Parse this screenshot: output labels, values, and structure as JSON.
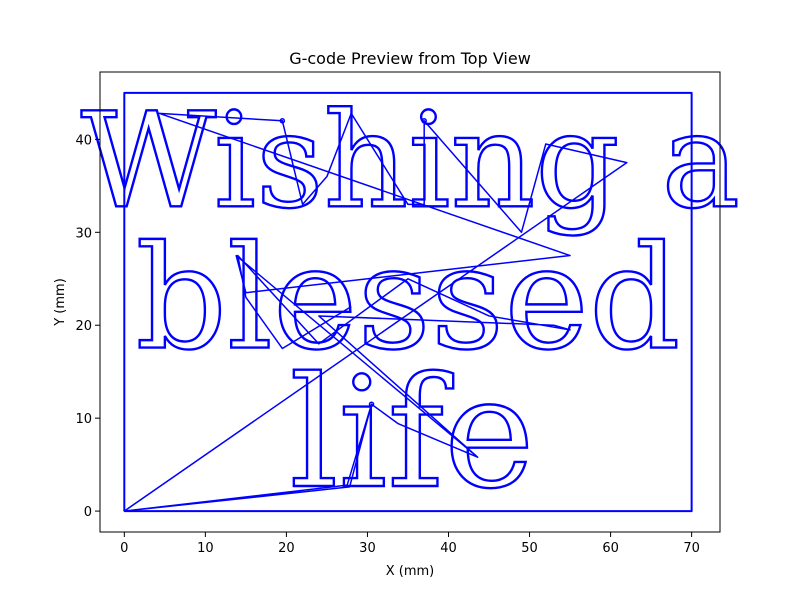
{
  "chart_data": {
    "type": "line",
    "title": "G-code Preview from Top View",
    "xlabel": "X (mm)",
    "ylabel": "Y (mm)",
    "xlim": [
      -3,
      73.5
    ],
    "ylim": [
      -2.25,
      47.25
    ],
    "xticks": [
      0,
      10,
      20,
      30,
      40,
      50,
      60,
      70
    ],
    "yticks": [
      0,
      10,
      20,
      30,
      40
    ],
    "grid": false,
    "line_color": "#0000ff",
    "series": [
      {
        "kind": "border",
        "points": [
          [
            0,
            0
          ],
          [
            0,
            45
          ],
          [
            70,
            45
          ],
          [
            70,
            0
          ],
          [
            0,
            0
          ]
        ]
      },
      {
        "kind": "travel",
        "points": [
          [
            0,
            0
          ],
          [
            27.5,
            2.8
          ],
          [
            30.5,
            11.5
          ],
          [
            27.8,
            2.6
          ],
          [
            0,
            0
          ],
          [
            62,
            37.5
          ],
          [
            52,
            39.5
          ],
          [
            49,
            30
          ],
          [
            37,
            42
          ],
          [
            37,
            33
          ],
          [
            35,
            33
          ],
          [
            28,
            42.8
          ],
          [
            25,
            36
          ],
          [
            22,
            33
          ],
          [
            19.5,
            42
          ],
          [
            4.3,
            42.8
          ],
          [
            55,
            27.5
          ],
          [
            15,
            23.5
          ],
          [
            13.8,
            27.5
          ],
          [
            43.6,
            5.8
          ],
          [
            33.8,
            9.4
          ],
          [
            30.5,
            11.5
          ],
          [
            33.8,
            9.4
          ],
          [
            43.6,
            5.8
          ],
          [
            24,
            21
          ],
          [
            53,
            20
          ],
          [
            55,
            19.5
          ],
          [
            45,
            21
          ],
          [
            35,
            25
          ],
          [
            24,
            18
          ],
          [
            14,
            27.5
          ],
          [
            15,
            23
          ],
          [
            19.5,
            17.5
          ],
          [
            28,
            22
          ]
        ]
      }
    ],
    "text_strokes": [
      {
        "text": "Wishing a",
        "x_center": 35.3,
        "baseline_y": 32.8,
        "height_mm": 10.5
      },
      {
        "text": "blessed",
        "x_center": 35,
        "baseline_y": 17.6,
        "height_mm": 11.4
      },
      {
        "text": "life",
        "x_center": 35.5,
        "baseline_y": 2.7,
        "height_mm": 12.2
      }
    ]
  }
}
